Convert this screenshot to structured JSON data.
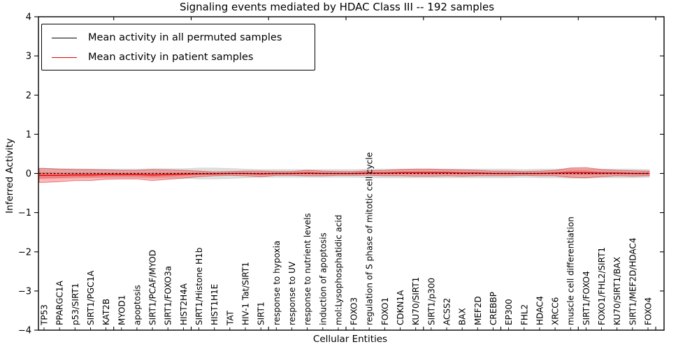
{
  "chart_data": {
    "type": "line",
    "title": "Signaling events mediated by HDAC Class III -- 192 samples",
    "xlabel": "Cellular Entities",
    "ylabel": "Inferred Activity",
    "ylim": [
      -4,
      4
    ],
    "grid": false,
    "legend_position": "upper left",
    "y_ticks": [
      4,
      3,
      2,
      1,
      0,
      -1,
      -2,
      -3,
      -4
    ],
    "y_tick_labels": [
      "4",
      "3",
      "2",
      "1",
      "0",
      "−1",
      "−2",
      "−3",
      "−4"
    ],
    "x_axis_tick_positions": [
      5,
      10,
      15,
      20,
      25,
      30,
      35,
      40
    ],
    "categories": [
      "TP53",
      "PPARGC1A",
      "p53/SIRT1",
      "SIRT1/PGC1A",
      "KAT2B",
      "MYOD1",
      "apoptosis",
      "SIRT1/PCAF/MYOD",
      "SIRT1/FOXO3a",
      "HIST2H4A",
      "SIRT1/Histone H1b",
      "HIST1H1E",
      "TAT",
      "HIV-1 Tat/SIRT1",
      "SIRT1",
      "response to hypoxia",
      "response to UV",
      "response to nutrient levels",
      "induction of apoptosis",
      "mol:Lysophosphatidic acid",
      "FOXO3",
      "regulation of S phase of mitotic cell cycle",
      "FOXO1",
      "CDKN1A",
      "KU70/SIRT1",
      "SIRT1/p300",
      "ACSS2",
      "BAX",
      "MEF2D",
      "CREBBP",
      "EP300",
      "FHL2",
      "HDAC4",
      "XRCC6",
      "muscle cell differentiation",
      "SIRT1/FOXO4",
      "FOXO1/FHL2/SIRT1",
      "KU70/SIRT1/BAX",
      "SIRT1/MEF2D/HDAC4",
      "FOXO4"
    ],
    "series": [
      {
        "name": "Mean activity in all permuted samples",
        "color": "#000000",
        "line_style": "dashed",
        "band_color": "rgba(0,0,0,0.13)",
        "values": [
          0,
          0,
          0,
          0,
          0,
          0,
          0,
          0,
          0,
          0,
          0,
          0,
          0,
          0,
          0,
          0,
          0,
          0,
          0,
          0,
          0,
          0,
          0,
          0,
          0,
          0,
          0,
          0,
          0,
          0,
          0,
          0,
          0,
          0,
          0,
          0,
          0,
          0,
          0,
          0
        ],
        "band_halfwidth": [
          0.13,
          0.12,
          0.12,
          0.11,
          0.11,
          0.11,
          0.11,
          0.12,
          0.12,
          0.12,
          0.14,
          0.14,
          0.13,
          0.11,
          0.1,
          0.1,
          0.1,
          0.1,
          0.1,
          0.1,
          0.1,
          0.11,
          0.11,
          0.11,
          0.11,
          0.11,
          0.11,
          0.11,
          0.11,
          0.11,
          0.11,
          0.1,
          0.11,
          0.11,
          0.12,
          0.12,
          0.11,
          0.11,
          0.11,
          0.1
        ]
      },
      {
        "name": "Mean activity in patient samples",
        "color": "#ee0000",
        "line_style": "solid",
        "band_color": "rgba(255,40,40,0.33)",
        "values": [
          -0.05,
          -0.05,
          -0.04,
          -0.04,
          -0.03,
          -0.03,
          -0.03,
          -0.04,
          -0.03,
          -0.02,
          -0.01,
          -0.01,
          0,
          0,
          -0.01,
          0,
          0,
          0.01,
          0,
          0,
          0,
          0.01,
          0.01,
          0.02,
          0.02,
          0.02,
          0.02,
          0.01,
          0.01,
          0,
          0,
          0,
          0,
          0.01,
          0.02,
          0.02,
          0.01,
          0.01,
          0,
          0
        ],
        "band_halfwidth": [
          0.18,
          0.16,
          0.14,
          0.14,
          0.12,
          0.11,
          0.11,
          0.14,
          0.12,
          0.1,
          0.07,
          0.05,
          0.05,
          0.06,
          0.07,
          0.05,
          0.05,
          0.07,
          0.06,
          0.05,
          0.05,
          0.06,
          0.07,
          0.08,
          0.09,
          0.09,
          0.08,
          0.08,
          0.07,
          0.06,
          0.06,
          0.05,
          0.06,
          0.07,
          0.12,
          0.13,
          0.09,
          0.07,
          0.07,
          0.06
        ]
      }
    ]
  }
}
